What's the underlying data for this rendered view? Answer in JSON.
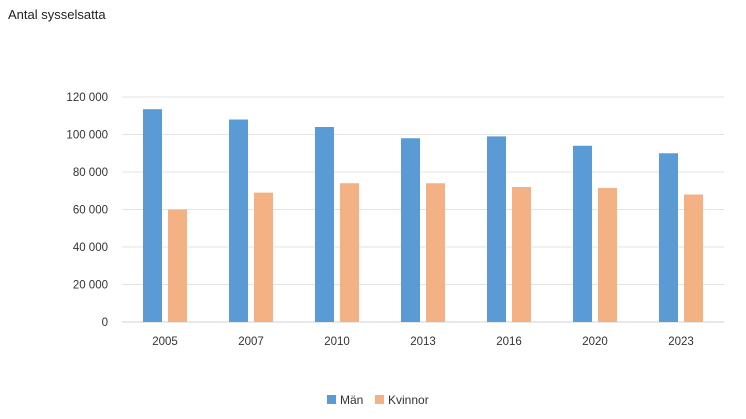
{
  "chart_data": {
    "type": "bar",
    "title": "",
    "xlabel": "",
    "ylabel": "Antal sysselsatta",
    "categories": [
      "2005",
      "2007",
      "2010",
      "2013",
      "2016",
      "2020",
      "2023"
    ],
    "series": [
      {
        "name": "Män",
        "color": "#5b9bd5",
        "values": [
          113500,
          108000,
          104000,
          98000,
          99000,
          94000,
          90000
        ]
      },
      {
        "name": "Kvinnor",
        "color": "#f4b183",
        "values": [
          60000,
          69000,
          74000,
          74000,
          72000,
          71500,
          68000
        ]
      }
    ],
    "ylim": [
      0,
      120000
    ],
    "yticks": [
      0,
      20000,
      40000,
      60000,
      80000,
      100000,
      120000
    ],
    "ytick_labels": [
      "0",
      "20 000",
      "40 000",
      "60 000",
      "80 000",
      "100 000",
      "120 000"
    ],
    "grid": true,
    "legend_position": "bottom"
  }
}
